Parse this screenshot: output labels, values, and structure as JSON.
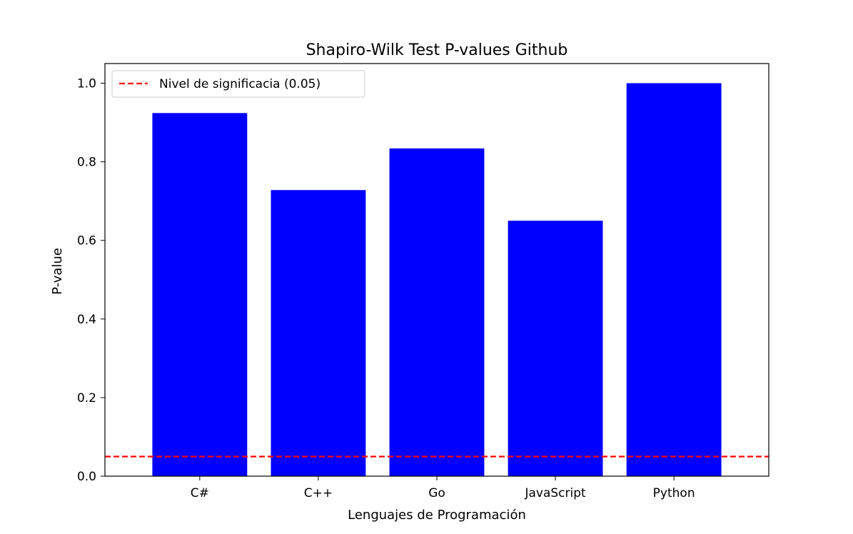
{
  "chart_data": {
    "type": "bar",
    "title": "Shapiro-Wilk Test P-values Github",
    "xlabel": "Lenguajes de Programación",
    "ylabel": "P-value",
    "categories": [
      "C#",
      "C++",
      "Go",
      "JavaScript",
      "Python"
    ],
    "values": [
      0.924,
      0.728,
      0.834,
      0.65,
      1.0
    ],
    "ylim": [
      0,
      1.05
    ],
    "yticks": [
      "0.0",
      "0.2",
      "0.4",
      "0.6",
      "0.8",
      "1.0"
    ],
    "bar_color": "#0000ff",
    "reference_line": {
      "label": "Nivel de significacia (0.05)",
      "value": 0.05,
      "color": "#ff0000",
      "style": "dashed"
    },
    "legend_position": "top-left",
    "grid": false
  }
}
